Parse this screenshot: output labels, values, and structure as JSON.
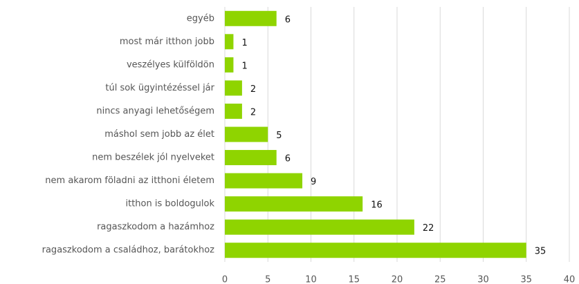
{
  "chart_data": {
    "type": "bar",
    "orientation": "horizontal",
    "categories": [
      "egyéb",
      "most már itthon jobb",
      "veszélyes külföldön",
      "túl sok ügyintézéssel jár",
      "nincs anyagi lehetőségem",
      "máshol sem jobb az élet",
      "nem beszélek jól nyelveket",
      "nem akarom föladni az itthoni életem",
      "itthon is boldogulok",
      "ragaszkodom a hazámhoz",
      "ragaszkodom a családhoz, barátokhoz"
    ],
    "values": [
      6,
      1,
      1,
      2,
      2,
      5,
      6,
      9,
      16,
      22,
      35
    ],
    "color": "#8fd400",
    "xlim": [
      0,
      40
    ],
    "xticks": [
      0,
      5,
      10,
      15,
      20,
      25,
      30,
      35,
      40
    ],
    "grid": true
  }
}
